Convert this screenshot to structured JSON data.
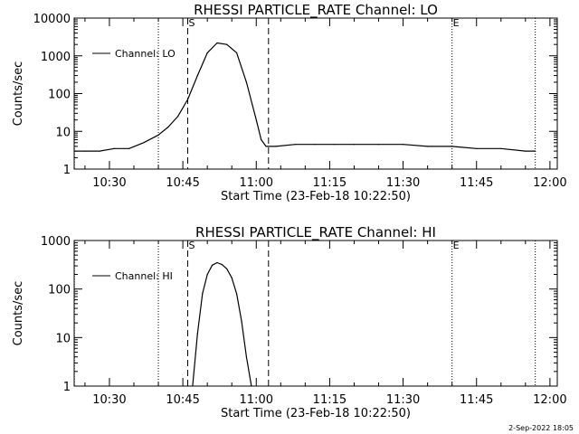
{
  "stamp": "2-Sep-2022 18:05",
  "chart_data": [
    {
      "type": "line",
      "title": "RHESSI PARTICLE_RATE Channel: LO",
      "xlabel": "Start Time (23-Feb-18 10:22:50)",
      "ylabel": "Counts/sec",
      "yscale": "log",
      "ylim": [
        1,
        10000
      ],
      "xlim_minutes_after_10_00": [
        22.8,
        121.5
      ],
      "x_ticks": [
        "10:30",
        "10:45",
        "11:00",
        "11:15",
        "11:30",
        "11:45",
        "12:00"
      ],
      "y_ticks": [
        "1",
        "10",
        "100",
        "1000",
        "10000"
      ],
      "legend": "Channel: LO",
      "legend_position": "top-left",
      "markers": [
        {
          "label": "",
          "time": "10:22:50",
          "style": "dotted"
        },
        {
          "label": "",
          "time": "10:40:00",
          "style": "dotted"
        },
        {
          "label": "S",
          "time": "10:46:00",
          "style": "dashed"
        },
        {
          "label": "",
          "time": "11:02:30",
          "style": "dashed"
        },
        {
          "label": "E",
          "time": "11:40:00",
          "style": "dotted"
        },
        {
          "label": "",
          "time": "11:57:00",
          "style": "dotted"
        }
      ],
      "series": [
        {
          "x": [
            "10:23",
            "10:25",
            "10:28",
            "10:31",
            "10:34",
            "10:37",
            "10:40",
            "10:42",
            "10:44",
            "10:46",
            "10:48",
            "10:50",
            "10:52",
            "10:54",
            "10:56",
            "10:58",
            "11:00",
            "11:01",
            "11:02",
            "11:04",
            "11:08",
            "11:12",
            "11:16",
            "11:20",
            "11:25",
            "11:30",
            "11:35",
            "11:40",
            "11:45",
            "11:50",
            "11:55",
            "11:57"
          ],
          "y": [
            3,
            3,
            3,
            3.5,
            3.5,
            5,
            8,
            13,
            25,
            70,
            300,
            1200,
            2200,
            2000,
            1200,
            200,
            20,
            6,
            4,
            4,
            4.5,
            4.5,
            4.5,
            4.5,
            4.5,
            4.5,
            4,
            4,
            3.5,
            3.5,
            3,
            3
          ]
        }
      ]
    },
    {
      "type": "line",
      "title": "RHESSI PARTICLE_RATE Channel: HI",
      "xlabel": "Start Time (23-Feb-18 10:22:50)",
      "ylabel": "Counts/sec",
      "yscale": "log",
      "ylim": [
        1,
        1000
      ],
      "xlim_minutes_after_10_00": [
        22.8,
        121.5
      ],
      "x_ticks": [
        "10:30",
        "10:45",
        "11:00",
        "11:15",
        "11:30",
        "11:45",
        "12:00"
      ],
      "y_ticks": [
        "1",
        "10",
        "100",
        "1000"
      ],
      "legend": "Channel: HI",
      "legend_position": "top-left",
      "markers": [
        {
          "label": "",
          "time": "10:22:50",
          "style": "dotted"
        },
        {
          "label": "",
          "time": "10:40:00",
          "style": "dotted"
        },
        {
          "label": "S",
          "time": "10:46:00",
          "style": "dashed"
        },
        {
          "label": "",
          "time": "11:02:30",
          "style": "dashed"
        },
        {
          "label": "E",
          "time": "11:40:00",
          "style": "dotted"
        },
        {
          "label": "",
          "time": "11:57:00",
          "style": "dotted"
        }
      ],
      "series": [
        {
          "x": [
            "10:47",
            "10:48",
            "10:49",
            "10:50",
            "10:51",
            "10:52",
            "10:53",
            "10:54",
            "10:55",
            "10:56",
            "10:57",
            "10:58",
            "10:59"
          ],
          "y": [
            1,
            12,
            80,
            200,
            310,
            350,
            320,
            260,
            170,
            80,
            22,
            4,
            1
          ]
        }
      ]
    }
  ]
}
